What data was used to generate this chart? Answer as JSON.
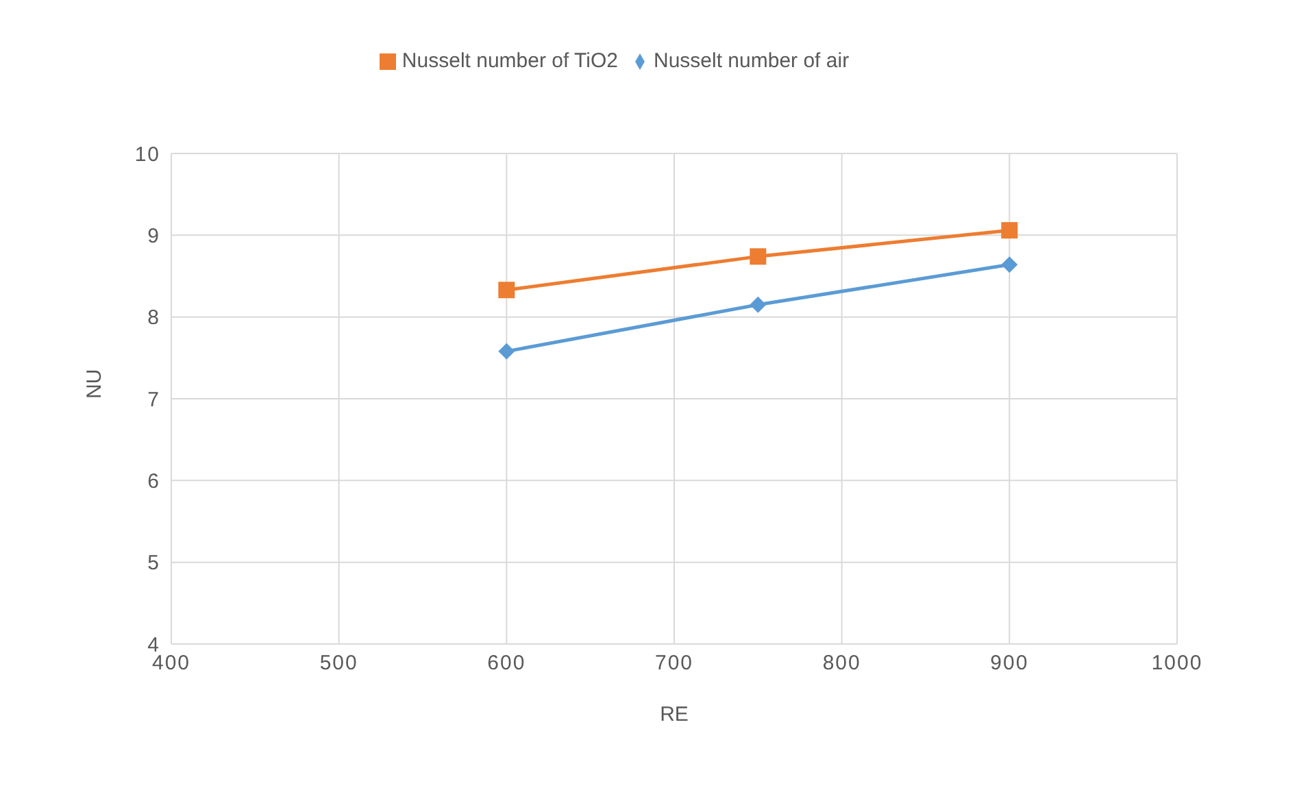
{
  "chart_data": {
    "type": "line",
    "xlabel": "RE",
    "ylabel": "NU",
    "series": [
      {
        "name": "Nusselt number of air",
        "color": "#5b9bd5",
        "marker": "diamond",
        "x": [
          600,
          750,
          900
        ],
        "values": [
          7.58,
          8.15,
          8.64
        ]
      },
      {
        "name": "Nusselt number of TiO2",
        "color": "#ed7d31",
        "marker": "square",
        "x": [
          600,
          750,
          900
        ],
        "values": [
          8.33,
          8.74,
          9.06
        ]
      }
    ],
    "xlim": [
      400,
      1000
    ],
    "xticks": [
      400,
      500,
      600,
      700,
      800,
      900,
      1000
    ],
    "ylim": [
      4,
      10
    ],
    "yticks": [
      4,
      5,
      6,
      7,
      8,
      9,
      10
    ],
    "grid": true,
    "legend": "top"
  }
}
